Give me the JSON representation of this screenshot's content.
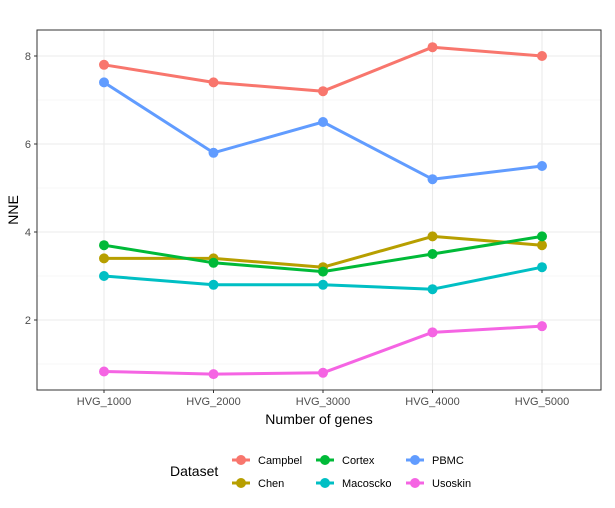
{
  "chart_data": {
    "type": "line",
    "xlabel": "Number of genes",
    "ylabel": "NNE",
    "categories": [
      "HVG_1000",
      "HVG_2000",
      "HVG_3000",
      "HVG_4000",
      "HVG_5000"
    ],
    "yticks": [
      2,
      4,
      6,
      8
    ],
    "ylim": [
      0.4,
      8.6
    ],
    "grid": true,
    "legend": {
      "title": "Dataset",
      "position": "bottom"
    },
    "series": [
      {
        "name": "Campbel",
        "color": "#F8766D",
        "values": [
          7.8,
          7.4,
          7.2,
          8.2,
          8.0
        ]
      },
      {
        "name": "Chen",
        "color": "#B79F00",
        "values": [
          3.4,
          3.4,
          3.2,
          3.9,
          3.7
        ]
      },
      {
        "name": "Cortex",
        "color": "#00BA38",
        "values": [
          3.7,
          3.3,
          3.1,
          3.5,
          3.9
        ]
      },
      {
        "name": "Macoscko",
        "color": "#00BFC4",
        "values": [
          3.0,
          2.8,
          2.8,
          2.7,
          3.2
        ]
      },
      {
        "name": "PBMC",
        "color": "#619CFF",
        "values": [
          7.4,
          5.8,
          6.5,
          5.2,
          5.5
        ]
      },
      {
        "name": "Usoskin",
        "color": "#F564E3",
        "values": [
          0.83,
          0.77,
          0.8,
          1.72,
          1.86
        ]
      }
    ]
  }
}
